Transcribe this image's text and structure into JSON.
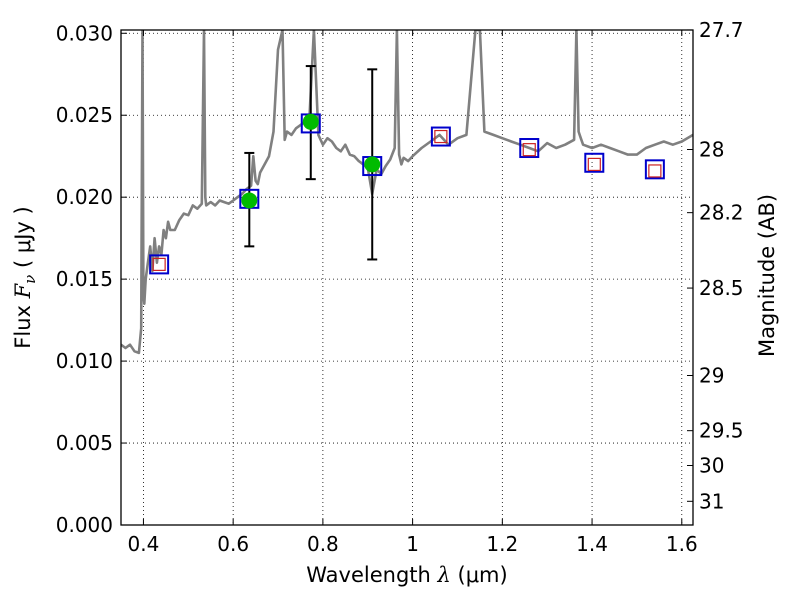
{
  "chart_data": {
    "type": "scatter",
    "title": "",
    "xlabel": {
      "prefix": "Wavelength  ",
      "symbol": "λ",
      "unit": " (μm)"
    },
    "ylabel": {
      "prefix": "Flux  ",
      "symbol": "F",
      "subscript": "ν",
      "unit": "  ( μJy )"
    },
    "y2label": "Magnitude (AB)",
    "xlim": [
      0.35,
      1.625
    ],
    "ylim": [
      0.0,
      0.0302
    ],
    "grid": true,
    "x_ticks": [
      {
        "value": 0.4,
        "label": "0.4"
      },
      {
        "value": 0.6,
        "label": "0.6"
      },
      {
        "value": 0.8,
        "label": "0.8"
      },
      {
        "value": 1.0,
        "label": "1"
      },
      {
        "value": 1.2,
        "label": "1.2"
      },
      {
        "value": 1.4,
        "label": "1.4"
      },
      {
        "value": 1.6,
        "label": "1.6"
      }
    ],
    "y_ticks": [
      {
        "value": 0.0,
        "label": "0.000"
      },
      {
        "value": 0.005,
        "label": "0.005"
      },
      {
        "value": 0.01,
        "label": "0.010"
      },
      {
        "value": 0.015,
        "label": "0.015"
      },
      {
        "value": 0.02,
        "label": "0.020"
      },
      {
        "value": 0.025,
        "label": "0.025"
      },
      {
        "value": 0.03,
        "label": "0.030"
      }
    ],
    "magnitude_ticks": [
      {
        "mag": 27.7,
        "label": "27.7"
      },
      {
        "mag": 28,
        "label": "28"
      },
      {
        "mag": 28.2,
        "label": "28.2"
      },
      {
        "mag": 28.5,
        "label": "28.5"
      },
      {
        "mag": 29,
        "label": "29"
      },
      {
        "mag": 29.5,
        "label": "29.5"
      },
      {
        "mag": 30,
        "label": "30"
      },
      {
        "mag": 31,
        "label": "31"
      }
    ],
    "series": [
      {
        "kind": "model_spectrum",
        "color": "#808080",
        "x": [
          0.35,
          0.36,
          0.37,
          0.38,
          0.39,
          0.395,
          0.398,
          0.4,
          0.402,
          0.405,
          0.41,
          0.415,
          0.42,
          0.425,
          0.43,
          0.435,
          0.44,
          0.445,
          0.45,
          0.455,
          0.46,
          0.47,
          0.48,
          0.49,
          0.5,
          0.51,
          0.52,
          0.53,
          0.535,
          0.538,
          0.54,
          0.545,
          0.55,
          0.56,
          0.57,
          0.58,
          0.59,
          0.6,
          0.61,
          0.62,
          0.63,
          0.64,
          0.645,
          0.65,
          0.655,
          0.66,
          0.67,
          0.68,
          0.69,
          0.7,
          0.71,
          0.715,
          0.72,
          0.73,
          0.74,
          0.75,
          0.76,
          0.77,
          0.78,
          0.79,
          0.8,
          0.81,
          0.82,
          0.83,
          0.84,
          0.85,
          0.86,
          0.87,
          0.88,
          0.89,
          0.9,
          0.91,
          0.92,
          0.93,
          0.94,
          0.95,
          0.96,
          0.965,
          0.97,
          0.975,
          0.98,
          0.99,
          1.0,
          1.02,
          1.04,
          1.06,
          1.08,
          1.1,
          1.12,
          1.14,
          1.15,
          1.16,
          1.18,
          1.2,
          1.22,
          1.24,
          1.26,
          1.28,
          1.3,
          1.32,
          1.34,
          1.36,
          1.365,
          1.37,
          1.375,
          1.38,
          1.4,
          1.42,
          1.44,
          1.46,
          1.48,
          1.5,
          1.52,
          1.54,
          1.56,
          1.58,
          1.6,
          1.625
        ],
        "y": [
          0.011,
          0.0108,
          0.011,
          0.0106,
          0.0105,
          0.012,
          0.0302,
          0.014,
          0.0135,
          0.015,
          0.016,
          0.017,
          0.0155,
          0.0175,
          0.016,
          0.017,
          0.0165,
          0.018,
          0.0175,
          0.0185,
          0.018,
          0.018,
          0.0186,
          0.019,
          0.0189,
          0.0195,
          0.0193,
          0.0196,
          0.0302,
          0.02,
          0.0195,
          0.0196,
          0.0197,
          0.0195,
          0.0198,
          0.0197,
          0.0196,
          0.0198,
          0.02,
          0.0202,
          0.0205,
          0.0207,
          0.0225,
          0.021,
          0.0208,
          0.0215,
          0.022,
          0.0225,
          0.024,
          0.029,
          0.0302,
          0.0235,
          0.024,
          0.0238,
          0.0242,
          0.0244,
          0.0246,
          0.0248,
          0.0302,
          0.0238,
          0.0232,
          0.0236,
          0.0234,
          0.023,
          0.0228,
          0.0232,
          0.0226,
          0.0225,
          0.0222,
          0.022,
          0.0218,
          0.0202,
          0.0217,
          0.0214,
          0.0219,
          0.0223,
          0.023,
          0.0302,
          0.0226,
          0.022,
          0.0224,
          0.0222,
          0.0225,
          0.023,
          0.0234,
          0.0238,
          0.0232,
          0.0236,
          0.0238,
          0.0302,
          0.0302,
          0.024,
          0.0238,
          0.0236,
          0.0234,
          0.0232,
          0.023,
          0.0228,
          0.0233,
          0.023,
          0.0232,
          0.0235,
          0.0302,
          0.024,
          0.0236,
          0.0232,
          0.023,
          0.0232,
          0.023,
          0.0228,
          0.0226,
          0.0226,
          0.023,
          0.0232,
          0.0234,
          0.0232,
          0.0234,
          0.0238
        ]
      },
      {
        "kind": "model_photometry",
        "marker": "open-square",
        "color": "#0000cc",
        "x": [
          0.435,
          0.636,
          0.773,
          0.91,
          1.063,
          1.26,
          1.405,
          1.54
        ],
        "y": [
          0.0159,
          0.0199,
          0.0245,
          0.0219,
          0.0237,
          0.023,
          0.0221,
          0.0217
        ]
      },
      {
        "kind": "observed_detection",
        "marker": "filled-circle",
        "color": "#00bb00",
        "x": [
          0.636,
          0.773,
          0.91
        ],
        "y": [
          0.0198,
          0.0246,
          0.022
        ],
        "err_low": [
          0.017,
          0.0211,
          0.0162
        ],
        "err_high": [
          0.0227,
          0.028,
          0.0278
        ]
      },
      {
        "kind": "other_photometry",
        "marker": "open-square-small",
        "color": "#cc2222",
        "x": [
          0.435,
          1.063,
          1.26,
          1.405,
          1.54
        ],
        "y": [
          0.0159,
          0.0237,
          0.0229,
          0.022,
          0.0216
        ]
      }
    ]
  }
}
